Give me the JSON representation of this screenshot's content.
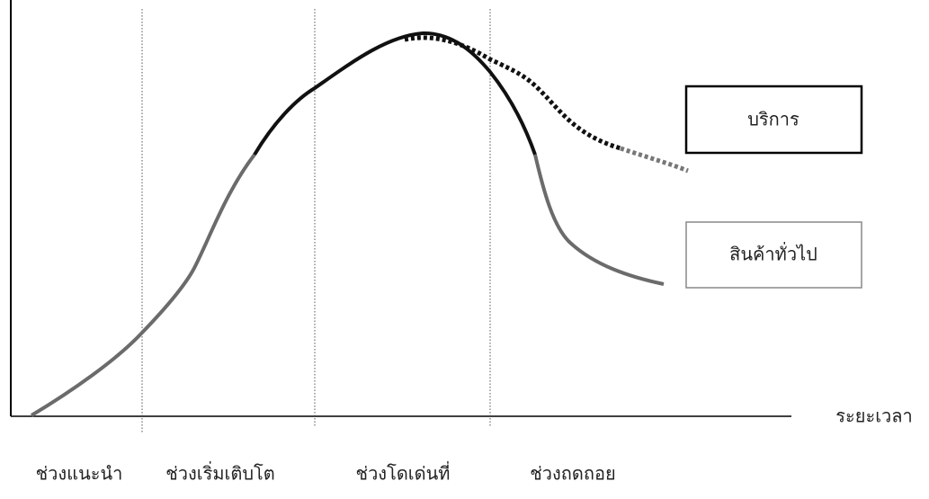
{
  "axis_label": "ระยะเวลา",
  "stages": [
    "ช่วงแนะนำ",
    "ช่วงเริ่มเติบโต",
    "ช่วงโดเด่นที่",
    "ช่วงถดถอย"
  ],
  "legend": [
    "บริการ",
    "สินค้าทั่วไป"
  ]
}
